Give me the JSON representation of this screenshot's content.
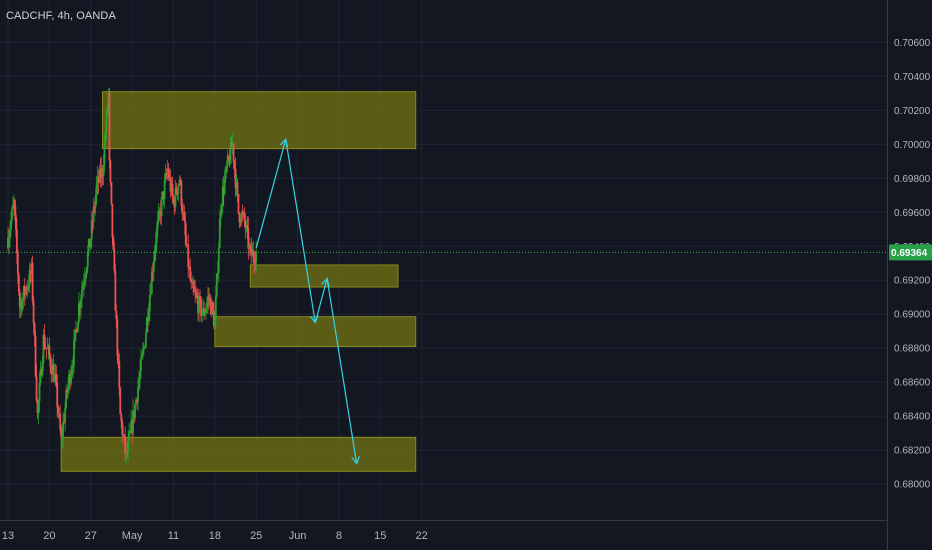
{
  "header": {
    "symbol_title": "CADCHF, 4h, OANDA"
  },
  "colors": {
    "background": "#131722",
    "grid": "#1f2433",
    "axis_text": "#b2b5be",
    "candle_up": "#26a69a",
    "candle_up_fill": "#2ca02c",
    "candle_down": "#ef5350",
    "zone_fill": "#6b6b13",
    "zone_border": "#8c8c1c",
    "projection_arrow": "#35d3e6",
    "price_line": "#4caf50",
    "price_label_bg": "#26a148"
  },
  "chart_data": {
    "type": "candlestick",
    "title": "CADCHF, 4h, OANDA",
    "ylim": [
      0.6785,
      0.7085
    ],
    "y_ticks": [
      "0.70600",
      "0.70400",
      "0.70200",
      "0.70000",
      "0.69800",
      "0.69600",
      "0.69400",
      "0.69200",
      "0.69000",
      "0.68800",
      "0.68600",
      "0.68400",
      "0.68200",
      "0.68000"
    ],
    "x_ticks": [
      "13",
      "20",
      "27",
      "May",
      "11",
      "18",
      "25",
      "Jun",
      "8",
      "15",
      "22"
    ],
    "current_price": "0.69364",
    "current_price_value": 0.69364,
    "grid": true,
    "path_keypoints": [
      {
        "date": "2020-04-13",
        "price": 0.6945
      },
      {
        "date": "2020-04-14",
        "price": 0.6965
      },
      {
        "date": "2020-04-15",
        "price": 0.6905
      },
      {
        "date": "2020-04-17",
        "price": 0.6925
      },
      {
        "date": "2020-04-18",
        "price": 0.684
      },
      {
        "date": "2020-04-19",
        "price": 0.6885
      },
      {
        "date": "2020-04-20",
        "price": 0.6875
      },
      {
        "date": "2020-04-21",
        "price": 0.686
      },
      {
        "date": "2020-04-22",
        "price": 0.6825
      },
      {
        "date": "2020-04-23",
        "price": 0.6855
      },
      {
        "date": "2020-04-24",
        "price": 0.6875
      },
      {
        "date": "2020-04-25",
        "price": 0.6905
      },
      {
        "date": "2020-04-26",
        "price": 0.6925
      },
      {
        "date": "2020-04-27",
        "price": 0.6945
      },
      {
        "date": "2020-04-28",
        "price": 0.6975
      },
      {
        "date": "2020-04-29",
        "price": 0.6985
      },
      {
        "date": "2020-04-30",
        "price": 0.703
      },
      {
        "date": "2020-04-30",
        "price": 0.7
      },
      {
        "date": "2020-05-01",
        "price": 0.692
      },
      {
        "date": "2020-05-02",
        "price": 0.684
      },
      {
        "date": "2020-05-03",
        "price": 0.6815
      },
      {
        "date": "2020-05-04",
        "price": 0.6835
      },
      {
        "date": "2020-05-06",
        "price": 0.688
      },
      {
        "date": "2020-05-08",
        "price": 0.6945
      },
      {
        "date": "2020-05-10",
        "price": 0.6985
      },
      {
        "date": "2020-05-11",
        "price": 0.6965
      },
      {
        "date": "2020-05-12",
        "price": 0.698
      },
      {
        "date": "2020-05-13",
        "price": 0.6945
      },
      {
        "date": "2020-05-14",
        "price": 0.6915
      },
      {
        "date": "2020-05-16",
        "price": 0.69
      },
      {
        "date": "2020-05-17",
        "price": 0.691
      },
      {
        "date": "2020-05-18",
        "price": 0.6895
      },
      {
        "date": "2020-05-19",
        "price": 0.6965
      },
      {
        "date": "2020-05-20",
        "price": 0.6985
      },
      {
        "date": "2020-05-21",
        "price": 0.7
      },
      {
        "date": "2020-05-22",
        "price": 0.696
      },
      {
        "date": "2020-05-23",
        "price": 0.6955
      },
      {
        "date": "2020-05-24",
        "price": 0.6935
      },
      {
        "date": "2020-05-25",
        "price": 0.69364
      }
    ],
    "zones": [
      {
        "start": "2020-04-29",
        "end": "2020-06-21",
        "low": 0.69975,
        "high": 0.7031
      },
      {
        "start": "2020-05-24",
        "end": "2020-06-18",
        "low": 0.6916,
        "high": 0.6929
      },
      {
        "start": "2020-05-18",
        "end": "2020-06-21",
        "low": 0.6881,
        "high": 0.68985
      },
      {
        "start": "2020-04-22",
        "end": "2020-06-21",
        "low": 0.68075,
        "high": 0.68275
      }
    ],
    "projection": [
      {
        "date": "2020-05-25",
        "price": 0.6939
      },
      {
        "date": "2020-05-30",
        "price": 0.7003
      },
      {
        "date": "2020-06-04",
        "price": 0.6895
      },
      {
        "date": "2020-06-06",
        "price": 0.6921
      },
      {
        "date": "2020-06-11",
        "price": 0.6812
      }
    ]
  }
}
